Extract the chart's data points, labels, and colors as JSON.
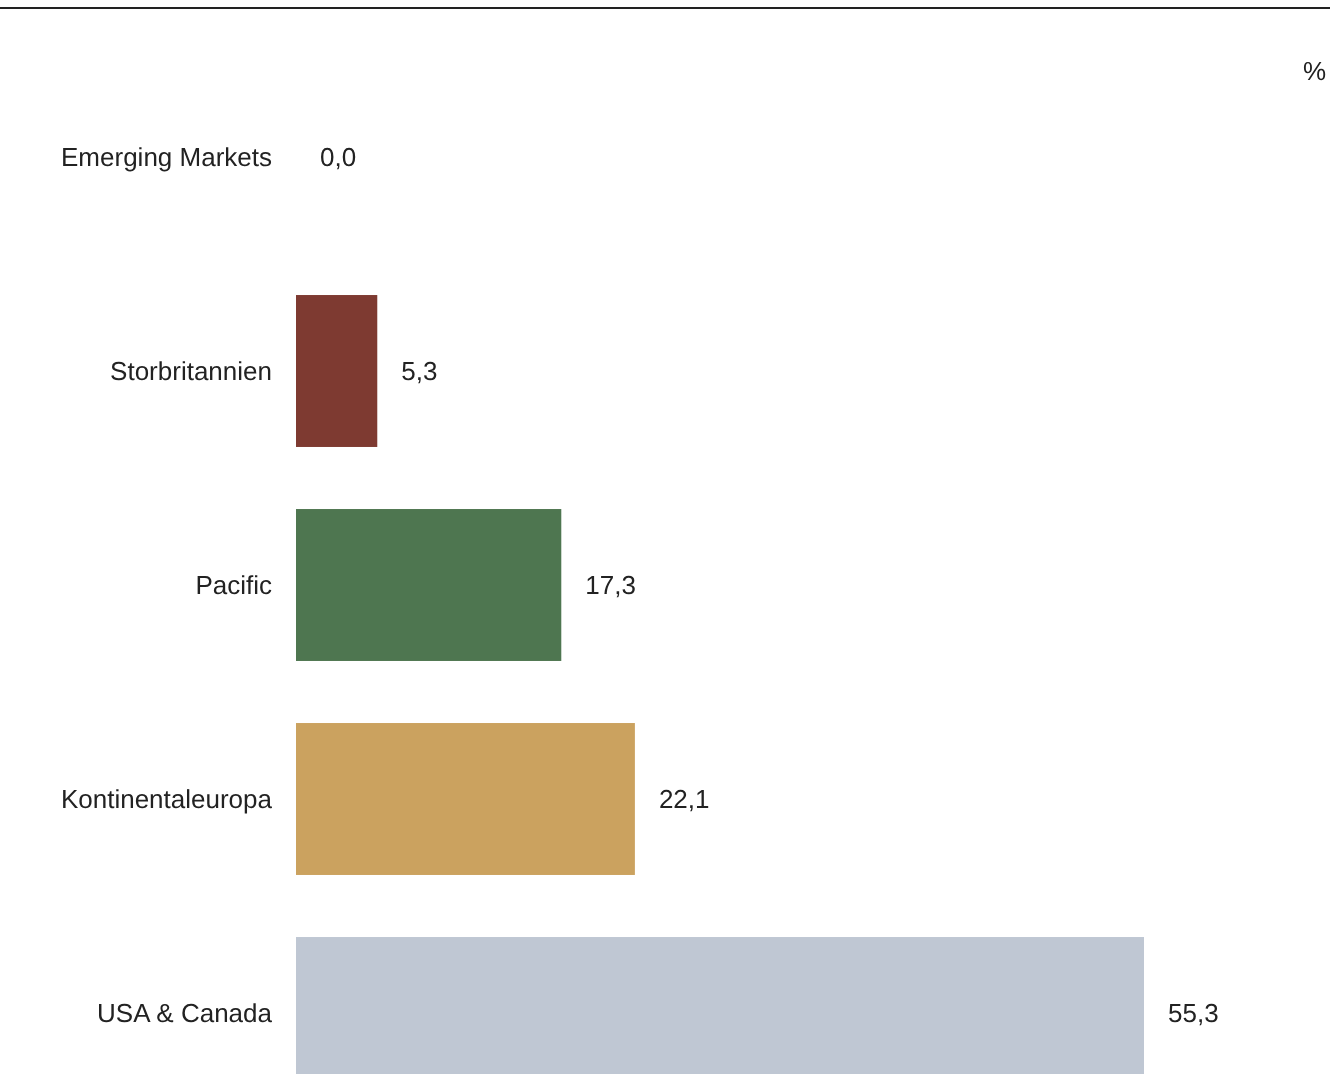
{
  "chart_data": {
    "type": "bar",
    "orientation": "horizontal",
    "annotations": [
      "%"
    ],
    "categories": [
      "Emerging Markets",
      "Storbritannien",
      "Pacific",
      "Kontinentaleuropa",
      "USA & Canada"
    ],
    "values": [
      0.0,
      5.3,
      17.3,
      22.1,
      55.3
    ],
    "value_labels": [
      "0,0",
      "5,3",
      "17,3",
      "22,1",
      "55,3"
    ],
    "colors": [
      "#cfdbe3",
      "#7e3a31",
      "#4e7650",
      "#cba25f",
      "#bfc7d3"
    ]
  }
}
